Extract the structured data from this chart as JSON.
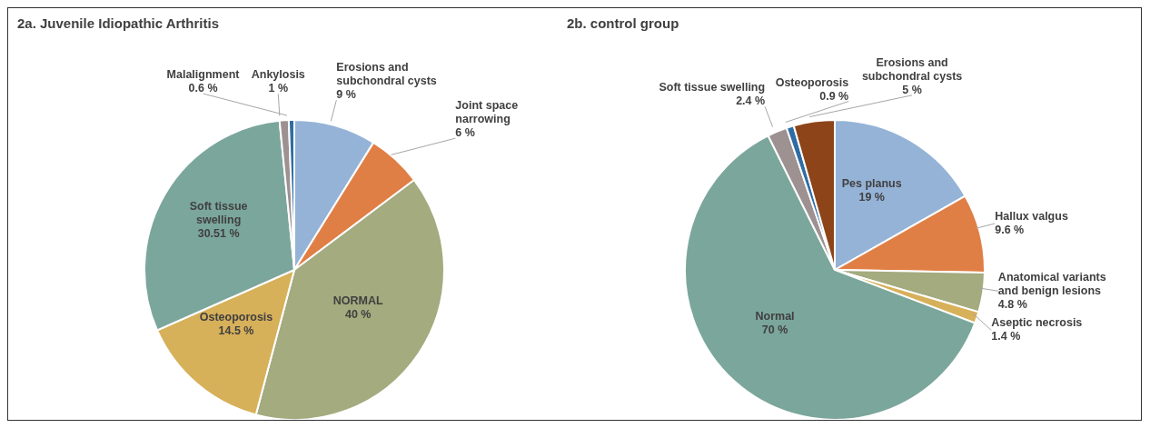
{
  "chart_data": [
    {
      "type": "pie",
      "title": "2a. Juvenile Idiopathic Arthritis",
      "categories": [
        "Erosions and subchondral cysts",
        "Joint space narrowing",
        "NORMAL",
        "Osteoporosis",
        "Soft tissue swelling",
        "Ankylosis",
        "Malalignment"
      ],
      "values": [
        9,
        6,
        40,
        14.5,
        30.51,
        1,
        0.6
      ],
      "value_labels": [
        "9 %",
        "6 %",
        "40 %",
        "14.5 %",
        "30.51 %",
        "1 %",
        "0.6 %"
      ],
      "colors": [
        "#95b3d7",
        "#e07f45",
        "#a3ab7f",
        "#d7b05a",
        "#7ba69b",
        "#9e9191",
        "#2e6da4"
      ]
    },
    {
      "type": "pie",
      "title": "2b. control group",
      "categories": [
        "Pes planus",
        "Hallux valgus",
        "Anatomical variants and benign lesions",
        "Aseptic necrosis",
        "Normal",
        "Soft tissue swelling",
        "Osteoporosis",
        "Erosions and subchondral cysts"
      ],
      "values": [
        19,
        9.6,
        4.8,
        1.4,
        70,
        2.4,
        0.9,
        5
      ],
      "value_labels": [
        "19 %",
        "9.6 %",
        "4.8 %",
        "1.4 %",
        "70 %",
        "2.4 %",
        "0.9 %",
        "5 %"
      ],
      "colors": [
        "#95b3d7",
        "#e07f45",
        "#a3ab7f",
        "#d7b05a",
        "#7ba69b",
        "#9e9191",
        "#2e6da4",
        "#8d4418"
      ]
    }
  ]
}
